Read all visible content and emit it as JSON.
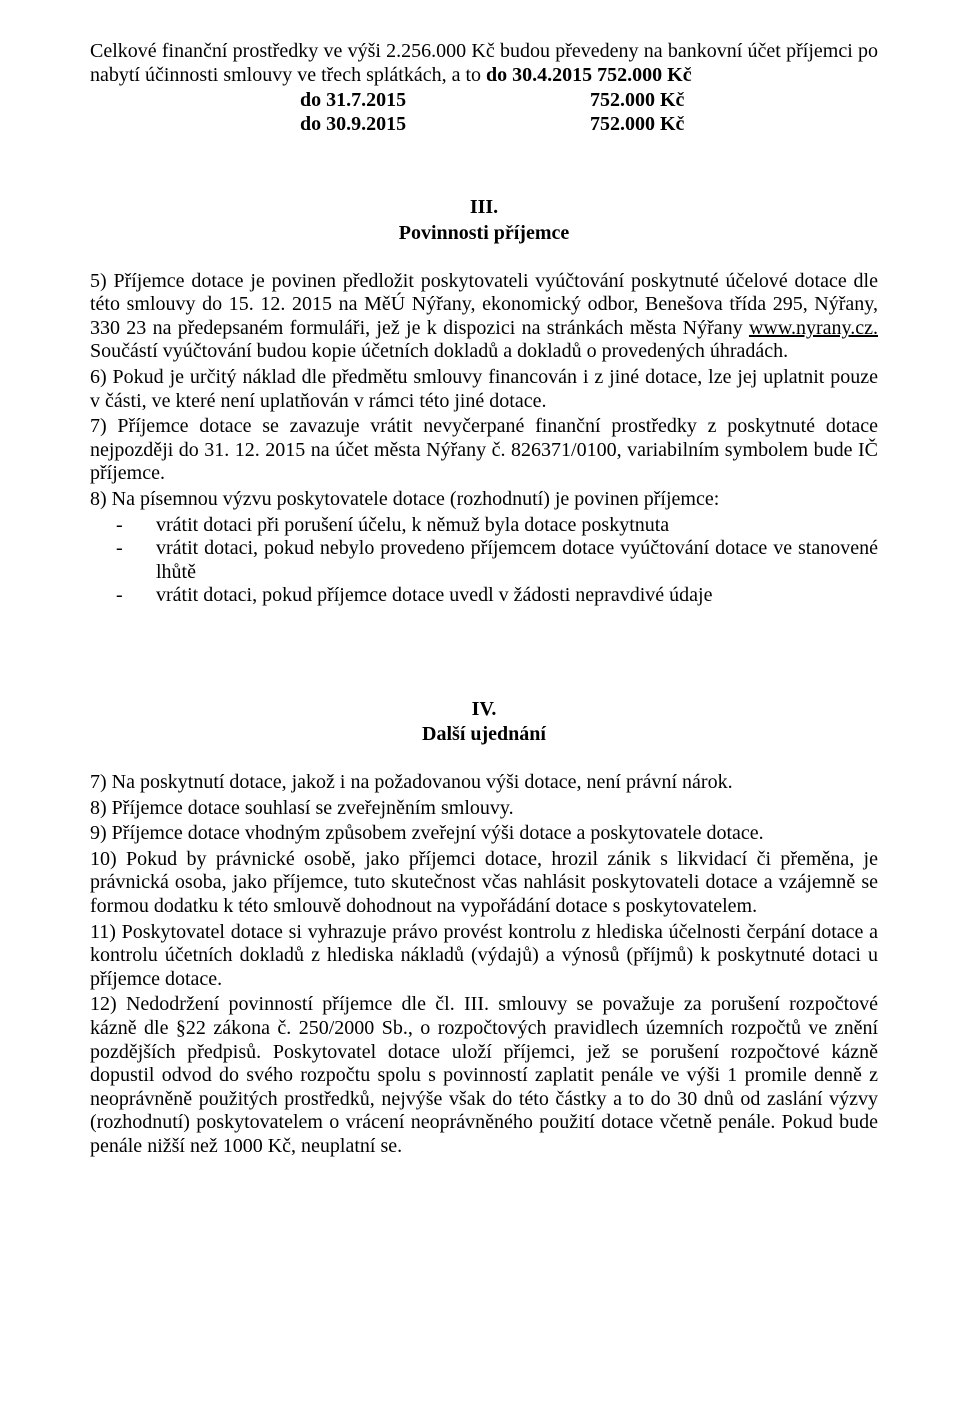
{
  "p1": "Celkové finanční prostředky ve výši 2.256.000 Kč budou převedeny na bankovní účet příjemci  po  nabytí  účinnosti  smlouvy  ve  třech  splátkách,  a  to  ",
  "p1_bold": "do  30.4.2015 752.000 Kč",
  "row2_left": "do 31.7.2015",
  "row2_right": "752.000 Kč",
  "row3_left": "do 30.9.2015",
  "row3_right": "752.000 Kč",
  "sec3_num": "III.",
  "sec3_title": "Povinnosti příjemce",
  "p5": "5) Příjemce dotace je povinen předložit poskytovateli vyúčtování poskytnuté účelové dotace dle této smlouvy do 15. 12. 2015 na MěÚ Nýřany, ekonomický odbor, Benešova třída 295, Nýřany, 330 23 na předepsaném formuláři, jež je k dispozici na stránkách města Nýřany ",
  "p5_link": "www.nyrany.cz.",
  "p5_cont": "    Součástí  vyúčtování  budou  kopie  účetních  dokladů  a  dokladů  o provedených úhradách.",
  "p6": "6) Pokud je určitý náklad dle předmětu smlouvy financován i z jiné dotace, lze jej uplatnit pouze v části, ve které není uplatňován v rámci této jiné dotace.",
  "p7": "7) Příjemce dotace se zavazuje vrátit nevyčerpané finanční prostředky z poskytnuté dotace nejpozději do 31. 12. 2015 na účet města Nýřany č. 826371/0100, variabilním symbolem bude IČ příjemce.",
  "p8": "8) Na písemnou výzvu poskytovatele dotace (rozhodnutí) je povinen příjemce:",
  "li1": "vrátit dotaci při porušení účelu, k němuž byla dotace poskytnuta",
  "li2": "vrátit  dotaci,  pokud  nebylo  provedeno  příjemcem  dotace  vyúčtování  dotace  ve stanovené lhůtě",
  "li3": "vrátit dotaci, pokud příjemce dotace uvedl v žádosti nepravdivé údaje",
  "sec4_num": "IV.",
  "sec4_title": "Další ujednání",
  "q7": "7) Na poskytnutí dotace, jakož i na požadovanou výši dotace, není právní nárok.",
  "q8": "8) Příjemce dotace souhlasí se zveřejněním smlouvy.",
  "q9": "9) Příjemce dotace vhodným způsobem zveřejní výši dotace a poskytovatele dotace.",
  "q10": "10)     Pokud by právnické osobě, jako příjemci dotace, hrozil zánik s likvidací či přeměna, je právnická  osoba,  jako  příjemce,  tuto  skutečnost  včas  nahlásit  poskytovateli  dotace  a vzájemně  se  formou  dodatku  k této  smlouvě  dohodnout  na  vypořádání  dotace s poskytovatelem.",
  "q11": "11)     Poskytovatel dotace si vyhrazuje právo provést kontrolu z hlediska účelnosti čerpání dotace  a  kontrolu  účetních  dokladů  z hlediska  nákladů  (výdajů)  a  výnosů  (příjmů) k poskytnuté dotaci u příjemce dotace.",
  "q12": "12)     Nedodržení  povinností  příjemce  dle  čl.  III.  smlouvy  se  považuje  za  porušení rozpočtové kázně dle §22 zákona č. 250/2000 Sb., o rozpočtových pravidlech územních rozpočtů ve znění pozdějších předpisů. Poskytovatel dotace uloží příjemci, jež se porušení rozpočtové kázně dopustil odvod do svého rozpočtu spolu s povinností zaplatit penále ve výši 1 promile denně z neoprávněně použitých prostředků, nejvýše však do této částky a to do 30 dnů od zaslání výzvy (rozhodnutí) poskytovatelem o vrácení neoprávněného použití dotace včetně penále. Pokud bude penále nižší než 1000 Kč, neuplatní se.",
  "dash": "-"
}
